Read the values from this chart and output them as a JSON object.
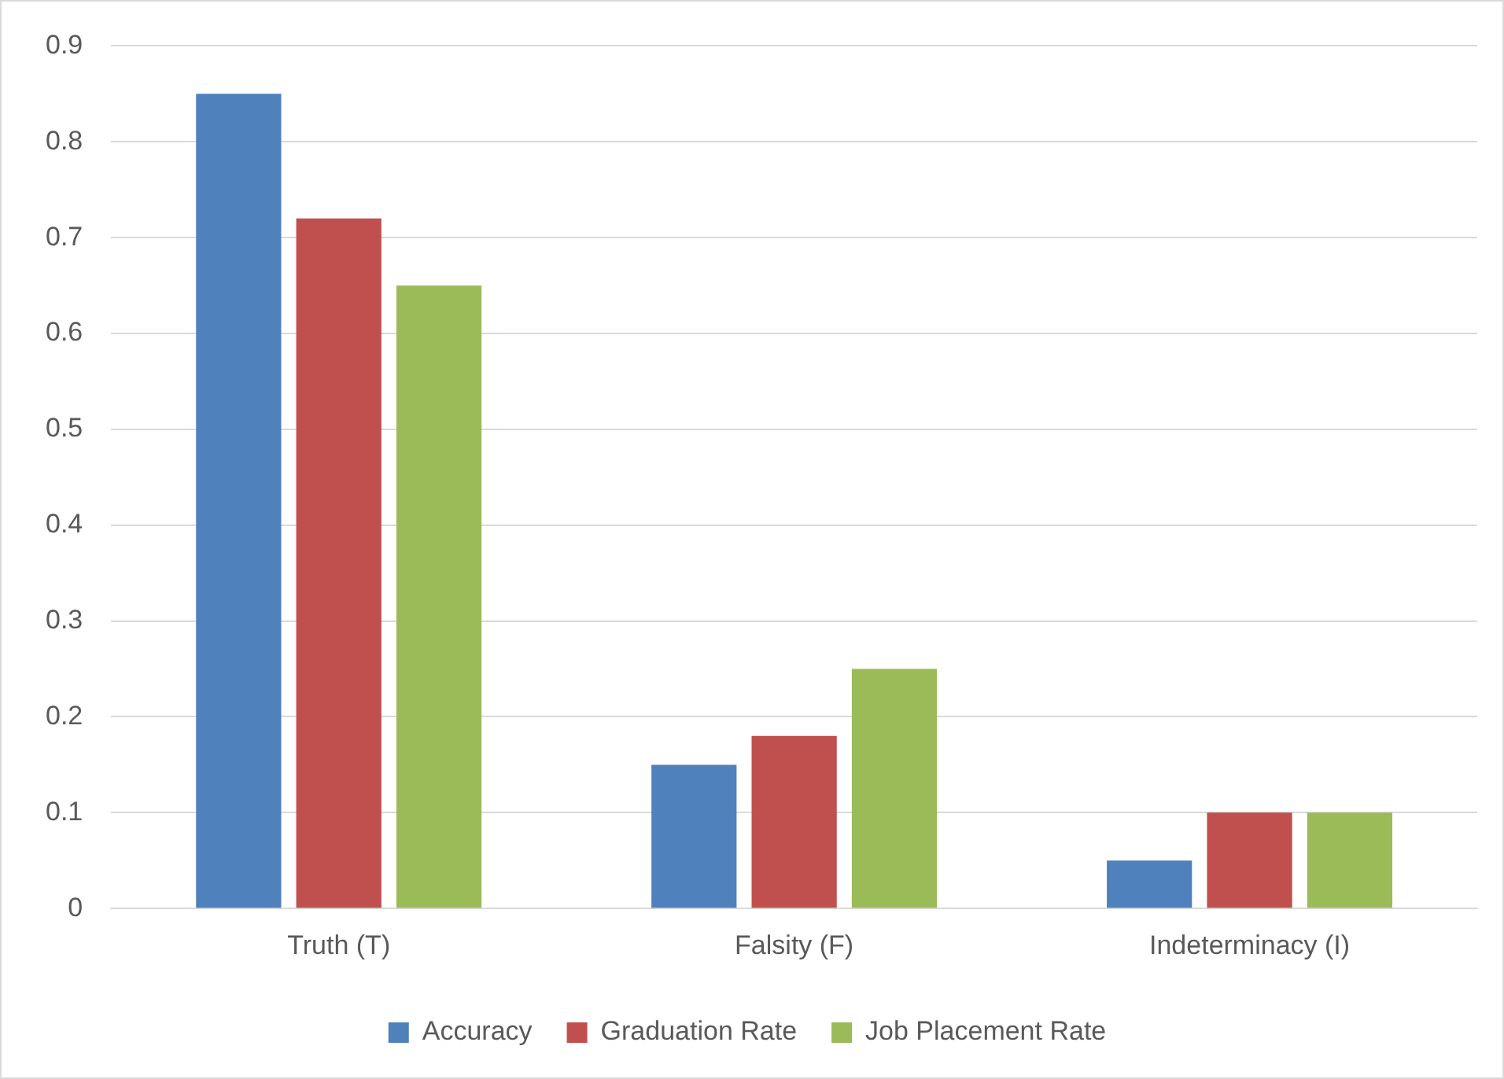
{
  "chart_data": {
    "type": "bar",
    "categories": [
      "Truth (T)",
      "Falsity (F)",
      "Indeterminacy (I)"
    ],
    "series": [
      {
        "name": "Accuracy",
        "color": "#4f81bd",
        "values": [
          0.85,
          0.15,
          0.05
        ]
      },
      {
        "name": "Graduation Rate",
        "color": "#c0504d",
        "values": [
          0.72,
          0.18,
          0.1
        ]
      },
      {
        "name": "Job Placement Rate",
        "color": "#9bbb59",
        "values": [
          0.65,
          0.25,
          0.1
        ]
      }
    ],
    "ylim": [
      0,
      0.9
    ],
    "yticks": [
      0,
      0.1,
      0.2,
      0.3,
      0.4,
      0.5,
      0.6,
      0.7,
      0.8,
      0.9
    ],
    "grid": "y",
    "legend": "bottom"
  }
}
